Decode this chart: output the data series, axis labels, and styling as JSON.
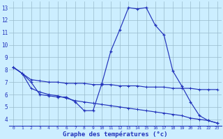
{
  "title": "Graphe des températures (°c)",
  "background_color": "#cceeff",
  "line_color": "#2233bb",
  "grid_color": "#99bbcc",
  "hours": [
    0,
    1,
    2,
    3,
    4,
    5,
    6,
    7,
    8,
    9,
    10,
    11,
    12,
    13,
    14,
    15,
    16,
    17,
    18,
    19,
    20,
    21,
    22,
    23
  ],
  "curve_main": [
    8.2,
    7.7,
    7.0,
    6.0,
    5.9,
    5.8,
    5.8,
    5.4,
    4.7,
    4.7,
    6.9,
    9.5,
    11.2,
    13.0,
    12.9,
    13.0,
    11.6,
    10.8,
    7.9,
    6.7,
    5.4,
    4.3,
    3.9,
    3.7
  ],
  "curve_top": [
    8.2,
    7.7,
    7.2,
    7.1,
    7.0,
    7.0,
    6.9,
    6.9,
    6.9,
    6.8,
    6.8,
    6.8,
    6.7,
    6.7,
    6.7,
    6.6,
    6.6,
    6.6,
    6.5,
    6.5,
    6.5,
    6.4,
    6.4,
    6.4
  ],
  "curve_bot": [
    8.2,
    7.7,
    6.5,
    6.2,
    6.0,
    5.9,
    5.7,
    5.5,
    5.4,
    5.3,
    5.2,
    5.1,
    5.0,
    4.9,
    4.8,
    4.7,
    4.6,
    4.5,
    4.4,
    4.3,
    4.1,
    4.0,
    3.9,
    3.7
  ],
  "ylim": [
    3.5,
    13.5
  ],
  "yticks": [
    4,
    5,
    6,
    7,
    8,
    9,
    10,
    11,
    12,
    13
  ],
  "xlim": [
    -0.5,
    23.5
  ],
  "xticks": [
    0,
    1,
    2,
    3,
    4,
    5,
    6,
    7,
    8,
    9,
    10,
    11,
    12,
    13,
    14,
    15,
    16,
    17,
    18,
    19,
    20,
    21,
    22,
    23
  ],
  "figsize": [
    3.2,
    2.0
  ],
  "dpi": 100
}
